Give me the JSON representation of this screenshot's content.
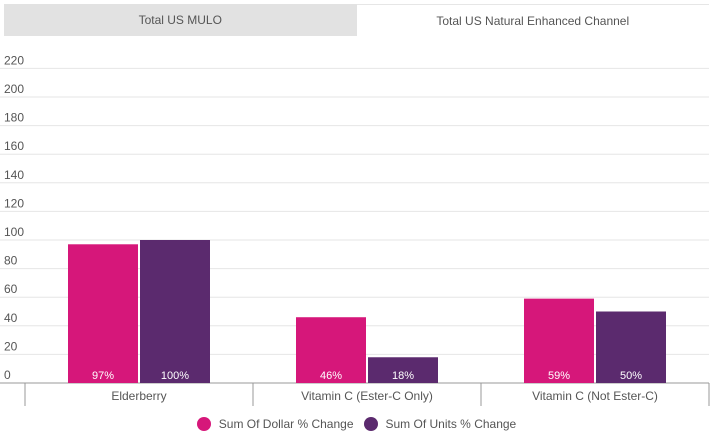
{
  "tabs": [
    {
      "label": "Total US MULO",
      "active": false
    },
    {
      "label": "Total US Natural Enhanced Channel",
      "active": true
    }
  ],
  "colors": {
    "dollar": "#d6177a",
    "units": "#5b2a6e",
    "grid": "#e6e6e6",
    "axis": "#999999"
  },
  "chart_data": {
    "type": "bar",
    "categories": [
      "Elderberry",
      "Vitamin C (Ester-C Only)",
      "Vitamin C (Not Ester-C)"
    ],
    "series": [
      {
        "name": "Sum Of Dollar % Change",
        "values": [
          97,
          46,
          59
        ],
        "labels": [
          "97%",
          "46%",
          "59%"
        ]
      },
      {
        "name": "Sum Of Units % Change",
        "values": [
          100,
          18,
          50
        ],
        "labels": [
          "100%",
          "18%",
          "50%"
        ]
      }
    ],
    "ylim": [
      0,
      220
    ],
    "yticks": [
      0,
      20,
      40,
      60,
      80,
      100,
      120,
      140,
      160,
      180,
      200,
      220
    ],
    "grid": true,
    "legend": "bottom-center",
    "title": "",
    "xlabel": "",
    "ylabel": ""
  }
}
